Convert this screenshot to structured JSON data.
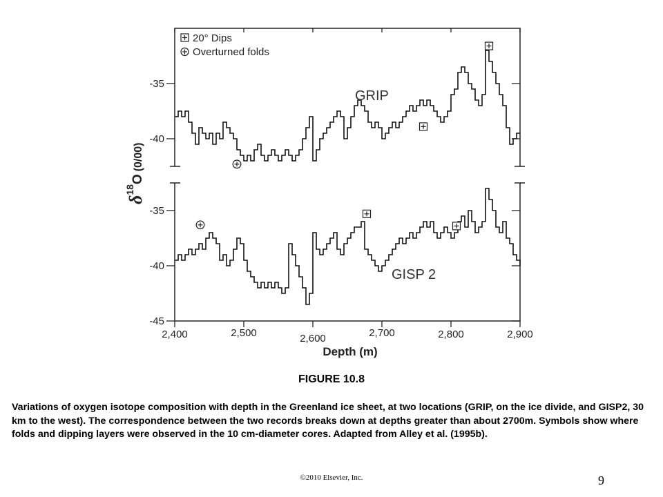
{
  "chart_data": {
    "type": "line",
    "xlabel": "Depth (m)",
    "ylabel_prefix": "δ",
    "ylabel_sup": "18",
    "ylabel_main": "O",
    "ylabel_unit": "(0/00)",
    "x_ticks": [
      "2,400",
      "2,500",
      "2,600",
      "2,700",
      "2,800",
      "2,900"
    ],
    "xlim": [
      2400,
      2900
    ],
    "legend": {
      "position": "top-left",
      "entries": [
        {
          "symbol": "boxed-plus",
          "label": "20°  Dips"
        },
        {
          "symbol": "circled-plus",
          "label": "Overturned folds"
        }
      ]
    },
    "panels": [
      {
        "name": "GRIP",
        "ylim": [
          -42.5,
          -30
        ],
        "y_ticks": [
          "-35",
          "-40"
        ],
        "y_tick_values": [
          -35,
          -40
        ],
        "series": [
          {
            "x": [
              2400,
              2405,
              2410,
              2415,
              2420,
              2425,
              2430,
              2435,
              2440,
              2445,
              2450,
              2455,
              2460,
              2465,
              2470,
              2475,
              2480,
              2485,
              2490,
              2495,
              2500,
              2505,
              2510,
              2515,
              2520,
              2525,
              2530,
              2535,
              2540,
              2545,
              2550,
              2555,
              2560,
              2565,
              2570,
              2575,
              2580,
              2585,
              2590,
              2595,
              2600,
              2605,
              2610,
              2615,
              2620,
              2625,
              2630,
              2635,
              2640,
              2645,
              2650,
              2655,
              2660,
              2665,
              2670,
              2675,
              2680,
              2685,
              2690,
              2695,
              2700,
              2705,
              2710,
              2715,
              2720,
              2725,
              2730,
              2735,
              2740,
              2745,
              2750,
              2755,
              2760,
              2765,
              2770,
              2775,
              2780,
              2785,
              2790,
              2795,
              2800,
              2805,
              2810,
              2815,
              2820,
              2825,
              2830,
              2835,
              2840,
              2845,
              2850,
              2855,
              2860,
              2865,
              2870,
              2875,
              2880,
              2885,
              2890,
              2895,
              2900
            ],
            "y": [
              -38,
              -37.5,
              -38,
              -37.5,
              -38.5,
              -39.5,
              -40.5,
              -39,
              -39.5,
              -40,
              -39.5,
              -40.5,
              -39.5,
              -40,
              -38.5,
              -39,
              -39.5,
              -40,
              -41,
              -41.5,
              -42,
              -41.5,
              -42,
              -41,
              -40.5,
              -41.5,
              -42,
              -41.5,
              -41,
              -41.5,
              -42,
              -41.5,
              -41,
              -41.5,
              -42,
              -41.5,
              -41,
              -40,
              -39,
              -38,
              -42,
              -41,
              -40,
              -39.5,
              -39,
              -38.5,
              -38,
              -37.5,
              -38,
              -40,
              -39,
              -38,
              -37,
              -36.5,
              -37,
              -37.5,
              -38.5,
              -39,
              -38.5,
              -39,
              -40,
              -39.5,
              -39,
              -38.5,
              -39,
              -38.5,
              -38,
              -37.5,
              -37,
              -37.5,
              -37,
              -36.5,
              -37,
              -36.5,
              -37,
              -37.5,
              -38,
              -38.5,
              -38,
              -37.5,
              -36,
              -35.5,
              -34,
              -33.5,
              -34,
              -35,
              -35.5,
              -36.5,
              -37,
              -36,
              -32,
              -33,
              -34,
              -35,
              -36,
              -37,
              -39,
              -40.5,
              -40,
              -39.5,
              -39.5
            ]
          }
        ]
      },
      {
        "name": "GISP 2",
        "ylim": [
          -45,
          -32.5
        ],
        "y_ticks": [
          "-35",
          "-40",
          "-45"
        ],
        "y_tick_values": [
          -35,
          -40,
          -45
        ],
        "series": [
          {
            "x": [
              2400,
              2405,
              2410,
              2415,
              2420,
              2425,
              2430,
              2435,
              2440,
              2445,
              2450,
              2455,
              2460,
              2465,
              2470,
              2475,
              2480,
              2485,
              2490,
              2495,
              2500,
              2505,
              2510,
              2515,
              2520,
              2525,
              2530,
              2535,
              2540,
              2545,
              2550,
              2555,
              2560,
              2565,
              2570,
              2575,
              2580,
              2585,
              2590,
              2595,
              2600,
              2605,
              2610,
              2615,
              2620,
              2625,
              2630,
              2635,
              2640,
              2645,
              2650,
              2655,
              2660,
              2665,
              2670,
              2675,
              2680,
              2685,
              2690,
              2695,
              2700,
              2705,
              2710,
              2715,
              2720,
              2725,
              2730,
              2735,
              2740,
              2745,
              2750,
              2755,
              2760,
              2765,
              2770,
              2775,
              2780,
              2785,
              2790,
              2795,
              2800,
              2805,
              2810,
              2815,
              2820,
              2825,
              2830,
              2835,
              2840,
              2845,
              2850,
              2855,
              2860,
              2865,
              2870,
              2875,
              2880,
              2885,
              2890,
              2895,
              2900
            ],
            "y": [
              -39.5,
              -39,
              -39.5,
              -39,
              -38.5,
              -39,
              -38.5,
              -38,
              -38.5,
              -37.5,
              -37,
              -37.5,
              -38,
              -39.5,
              -39,
              -40,
              -39.5,
              -38.5,
              -37.5,
              -38,
              -39.5,
              -40.5,
              -41,
              -41.5,
              -42,
              -41.5,
              -42,
              -41.5,
              -42,
              -41.5,
              -42,
              -42.5,
              -42,
              -38,
              -39,
              -40,
              -41,
              -42,
              -43.5,
              -42.5,
              -37,
              -38.5,
              -39,
              -38.5,
              -38,
              -37.5,
              -37,
              -38.5,
              -39,
              -38,
              -37.5,
              -37,
              -36.5,
              -36.5,
              -36,
              -38.5,
              -39,
              -39.5,
              -40,
              -40.5,
              -40,
              -39.5,
              -39,
              -38.5,
              -38,
              -37.5,
              -38,
              -37.5,
              -37,
              -37.5,
              -37,
              -36.5,
              -36,
              -36.5,
              -36,
              -37,
              -37.5,
              -37,
              -36.5,
              -37,
              -37.5,
              -37,
              -36,
              -35.5,
              -36.5,
              -35,
              -36,
              -37,
              -36.5,
              -36,
              -33,
              -34,
              -35,
              -36.5,
              -37,
              -36,
              -37.5,
              -38,
              -39,
              -39.5,
              -40
            ]
          }
        ]
      }
    ],
    "markers": [
      {
        "panel": "GRIP",
        "symbol": "circled-plus",
        "x": 2490,
        "y": -42.3
      },
      {
        "panel": "GRIP",
        "symbol": "boxed-plus",
        "x": 2760,
        "y": -38.9
      },
      {
        "panel": "GRIP",
        "symbol": "boxed-plus",
        "x": 2855,
        "y": -31.6
      },
      {
        "panel": "GISP 2",
        "symbol": "circled-plus",
        "x": 2437,
        "y": -36.3
      },
      {
        "panel": "GISP 2",
        "symbol": "boxed-plus",
        "x": 2678,
        "y": -35.3
      },
      {
        "panel": "GISP 2",
        "symbol": "boxed-plus",
        "x": 2808,
        "y": -36.4
      }
    ]
  },
  "figure_title": "FIGURE 10.8",
  "caption": "Variations of oxygen isotope composition with depth in the Greenland ice sheet, at two locations (GRIP, on the ice divide, and GISP2, 30 km to the west). The correspondence between the two records breaks down at depths greater than about 2700m. Symbols show where folds and dipping layers were observed in the 10 cm-diameter cores. Adapted from Alley et al. (1995b).",
  "footer": "©2010 Elsevier,  Inc.",
  "page_number": "9"
}
